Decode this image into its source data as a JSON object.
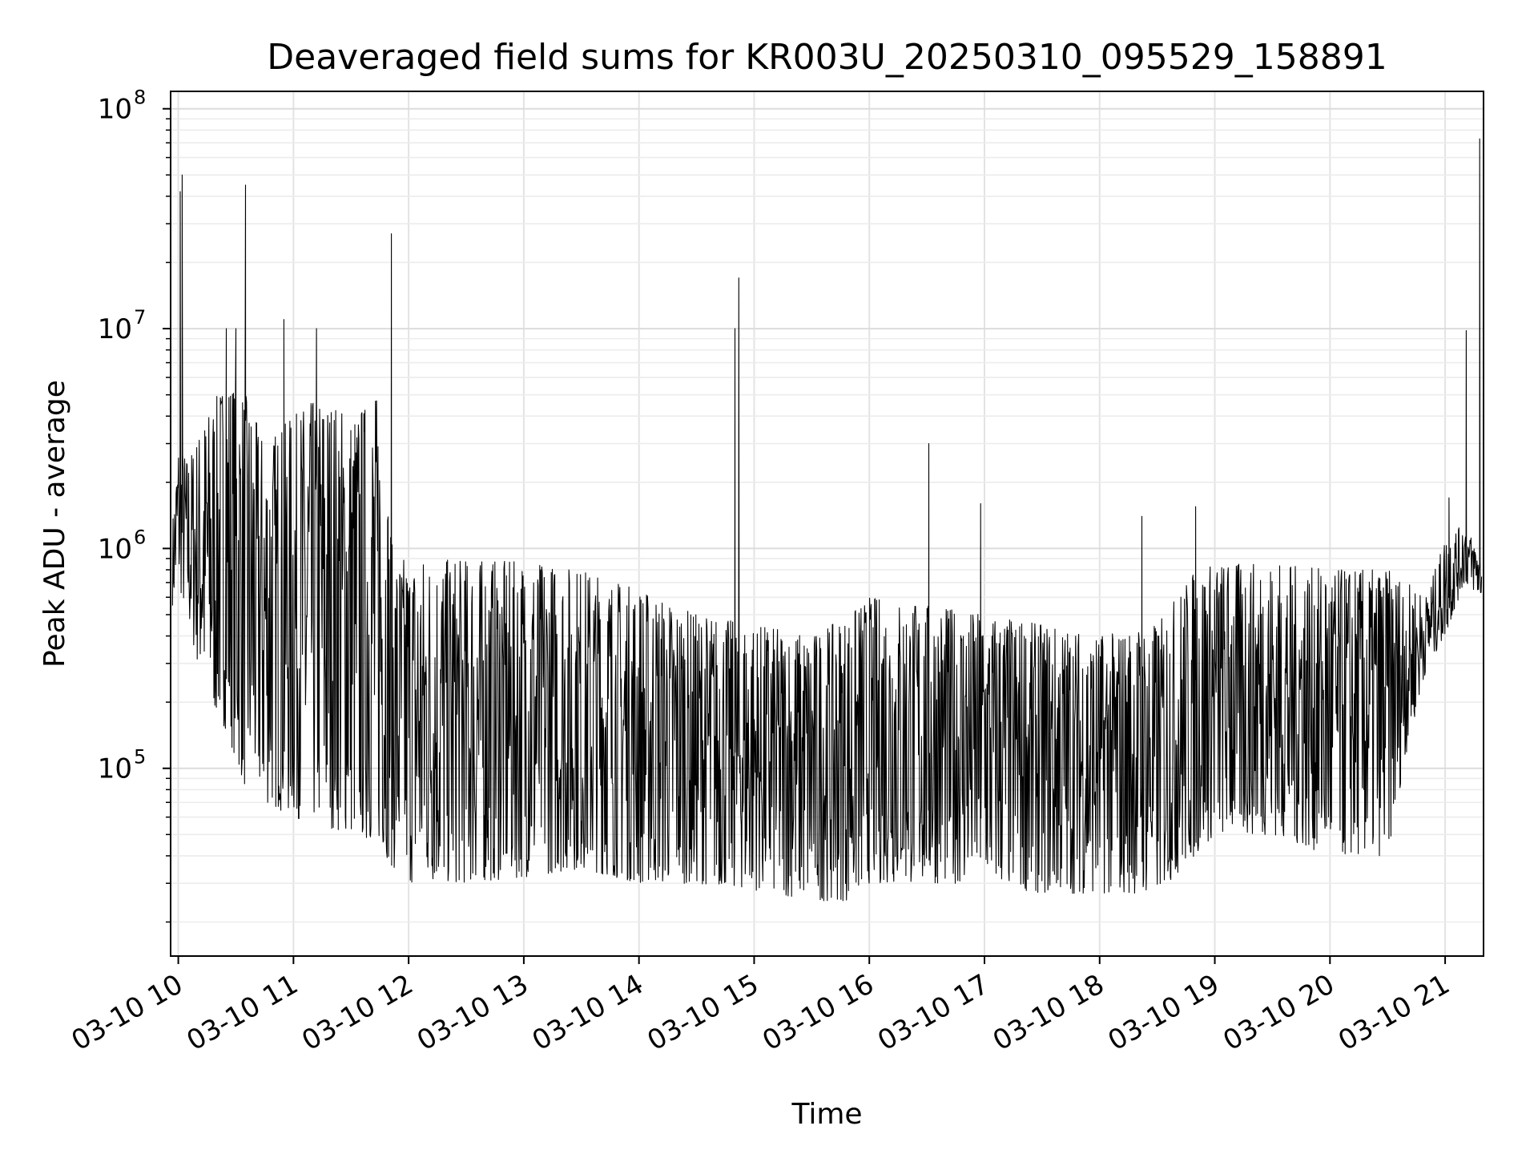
{
  "chart_data": {
    "type": "line",
    "title": "Deaveraged field sums for KR003U_20250310_095529_158891",
    "xlabel": "Time",
    "ylabel": "Peak ADU - average",
    "yscale": "log",
    "ylim": [
      14000,
      120000000
    ],
    "xlim": [
      "2025-03-10 09:56",
      "2025-03-10 21:20"
    ],
    "grid": true,
    "line_color": "#000000",
    "x_ticks": [
      {
        "time": "2025-03-10 10:00",
        "label": "03-10 10"
      },
      {
        "time": "2025-03-10 11:00",
        "label": "03-10 11"
      },
      {
        "time": "2025-03-10 12:00",
        "label": "03-10 12"
      },
      {
        "time": "2025-03-10 13:00",
        "label": "03-10 13"
      },
      {
        "time": "2025-03-10 14:00",
        "label": "03-10 14"
      },
      {
        "time": "2025-03-10 15:00",
        "label": "03-10 15"
      },
      {
        "time": "2025-03-10 16:00",
        "label": "03-10 16"
      },
      {
        "time": "2025-03-10 17:00",
        "label": "03-10 17"
      },
      {
        "time": "2025-03-10 18:00",
        "label": "03-10 18"
      },
      {
        "time": "2025-03-10 19:00",
        "label": "03-10 19"
      },
      {
        "time": "2025-03-10 20:00",
        "label": "03-10 20"
      },
      {
        "time": "2025-03-10 21:00",
        "label": "03-10 21"
      }
    ],
    "y_ticks": [
      {
        "value": 100000,
        "base": "10",
        "exp": "5"
      },
      {
        "value": 1000000,
        "base": "10",
        "exp": "6"
      },
      {
        "value": 10000000,
        "base": "10",
        "exp": "7"
      },
      {
        "value": 100000000,
        "base": "10",
        "exp": "8"
      }
    ],
    "envelope": [
      {
        "t": "2025-03-10 09:57",
        "lo": 550000,
        "hi": 1300000
      },
      {
        "t": "2025-03-10 10:00",
        "lo": 700000,
        "hi": 3000000
      },
      {
        "t": "2025-03-10 10:05",
        "lo": 450000,
        "hi": 2500000
      },
      {
        "t": "2025-03-10 10:15",
        "lo": 200000,
        "hi": 4000000
      },
      {
        "t": "2025-03-10 10:25",
        "lo": 150000,
        "hi": 6000000
      },
      {
        "t": "2025-03-10 10:35",
        "lo": 80000,
        "hi": 5000000
      },
      {
        "t": "2025-03-10 10:45",
        "lo": 70000,
        "hi": 3000000
      },
      {
        "t": "2025-03-10 11:00",
        "lo": 60000,
        "hi": 4000000
      },
      {
        "t": "2025-03-10 11:15",
        "lo": 55000,
        "hi": 5000000
      },
      {
        "t": "2025-03-10 11:30",
        "lo": 50000,
        "hi": 4000000
      },
      {
        "t": "2025-03-10 11:45",
        "lo": 45000,
        "hi": 5000000
      },
      {
        "t": "2025-03-10 11:52",
        "lo": 35000,
        "hi": 900000
      },
      {
        "t": "2025-03-10 12:00",
        "lo": 30000,
        "hi": 900000
      },
      {
        "t": "2025-03-10 12:30",
        "lo": 30000,
        "hi": 880000
      },
      {
        "t": "2025-03-10 13:00",
        "lo": 32000,
        "hi": 870000
      },
      {
        "t": "2025-03-10 13:30",
        "lo": 35000,
        "hi": 800000
      },
      {
        "t": "2025-03-10 14:00",
        "lo": 30000,
        "hi": 650000
      },
      {
        "t": "2025-03-10 14:30",
        "lo": 30000,
        "hi": 500000
      },
      {
        "t": "2025-03-10 15:00",
        "lo": 28000,
        "hi": 450000
      },
      {
        "t": "2025-03-10 15:30",
        "lo": 25000,
        "hi": 400000
      },
      {
        "t": "2025-03-10 15:50",
        "lo": 25000,
        "hi": 500000
      },
      {
        "t": "2025-03-10 16:00",
        "lo": 30000,
        "hi": 600000
      },
      {
        "t": "2025-03-10 16:30",
        "lo": 30000,
        "hi": 550000
      },
      {
        "t": "2025-03-10 17:00",
        "lo": 30000,
        "hi": 500000
      },
      {
        "t": "2025-03-10 17:30",
        "lo": 27000,
        "hi": 450000
      },
      {
        "t": "2025-03-10 18:00",
        "lo": 27000,
        "hi": 400000
      },
      {
        "t": "2025-03-10 18:30",
        "lo": 27000,
        "hi": 450000
      },
      {
        "t": "2025-03-10 18:50",
        "lo": 40000,
        "hi": 800000
      },
      {
        "t": "2025-03-10 19:00",
        "lo": 50000,
        "hi": 850000
      },
      {
        "t": "2025-03-10 19:30",
        "lo": 50000,
        "hi": 850000
      },
      {
        "t": "2025-03-10 20:00",
        "lo": 40000,
        "hi": 800000
      },
      {
        "t": "2025-03-10 20:30",
        "lo": 40000,
        "hi": 800000
      },
      {
        "t": "2025-03-10 20:40",
        "lo": 120000,
        "hi": 700000
      },
      {
        "t": "2025-03-10 20:50",
        "lo": 280000,
        "hi": 600000
      },
      {
        "t": "2025-03-10 21:00",
        "lo": 400000,
        "hi": 1100000
      },
      {
        "t": "2025-03-10 21:10",
        "lo": 700000,
        "hi": 1300000
      },
      {
        "t": "2025-03-10 21:19",
        "lo": 600000,
        "hi": 900000
      }
    ],
    "spikes": [
      {
        "t": "2025-03-10 10:02",
        "v": 50000000
      },
      {
        "t": "2025-03-10 10:01",
        "v": 42000000
      },
      {
        "t": "2025-03-10 10:35",
        "v": 45000000
      },
      {
        "t": "2025-03-10 10:25",
        "v": 10000000
      },
      {
        "t": "2025-03-10 10:30",
        "v": 10000000
      },
      {
        "t": "2025-03-10 10:55",
        "v": 11000000
      },
      {
        "t": "2025-03-10 11:12",
        "v": 10000000
      },
      {
        "t": "2025-03-10 11:51",
        "v": 27000000
      },
      {
        "t": "2025-03-10 14:50",
        "v": 10000000
      },
      {
        "t": "2025-03-10 14:52",
        "v": 17000000
      },
      {
        "t": "2025-03-10 16:31",
        "v": 3000000
      },
      {
        "t": "2025-03-10 16:58",
        "v": 1600000
      },
      {
        "t": "2025-03-10 18:22",
        "v": 1400000
      },
      {
        "t": "2025-03-10 18:50",
        "v": 1550000
      },
      {
        "t": "2025-03-10 21:02",
        "v": 1700000
      },
      {
        "t": "2025-03-10 21:11",
        "v": 9800000
      },
      {
        "t": "2025-03-10 21:18",
        "v": 73000000
      }
    ]
  }
}
